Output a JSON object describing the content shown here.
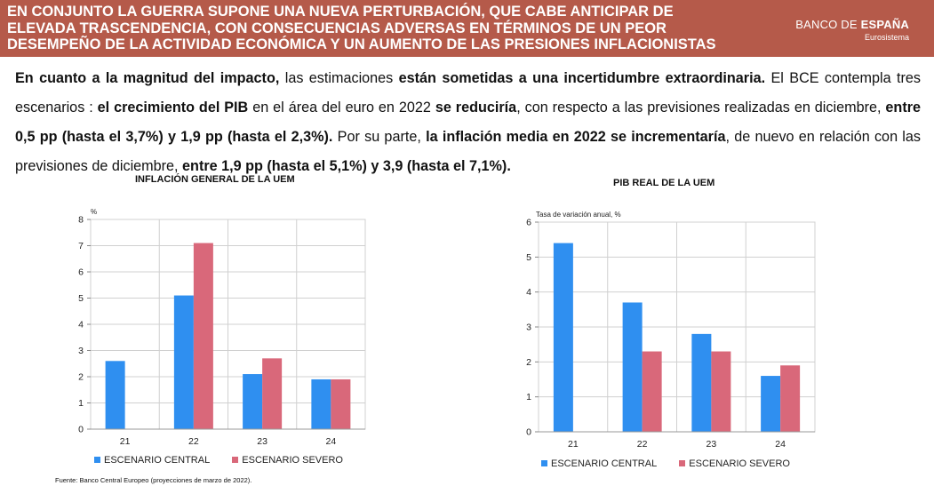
{
  "header": {
    "title_lines": [
      "EN CONJUNTO LA GUERRA SUPONE UNA NUEVA PERTURBACIÓN, QUE CABE ANTICIPAR DE",
      "ELEVADA TRASCENDENCIA, CON CONSECUENCIAS ADVERSAS EN TÉRMINOS DE UN PEOR",
      "DESEMPEÑO DE LA ACTIVIDAD ECONÓMICA Y UN AUMENTO DE LAS PRESIONES INFLACIONISTAS"
    ],
    "logo_part1": "BANCO DE ",
    "logo_part2": "ESPAÑA",
    "logo_sub": "Eurosistema",
    "bg_color": "#b55a4a"
  },
  "intro": [
    {
      "t": "En cuanto a la magnitud del impacto,",
      "b": true
    },
    {
      "t": " las estimaciones ",
      "b": false
    },
    {
      "t": "están sometidas a una incertidumbre extraordinaria.",
      "b": true
    },
    {
      "t": " El BCE contempla tres escenarios : ",
      "b": false
    },
    {
      "t": "el crecimiento del PIB",
      "b": true
    },
    {
      "t": " en el área del euro en 2022 ",
      "b": false
    },
    {
      "t": "se reduciría",
      "b": true
    },
    {
      "t": ", con respecto a las previsiones realizadas en diciembre, ",
      "b": false
    },
    {
      "t": "entre 0,5 pp (hasta el 3,7%) y 1,9 pp (hasta el 2,3%).",
      "b": true
    },
    {
      "t": " Por su parte, ",
      "b": false
    },
    {
      "t": "la inflación media en 2022 se incrementaría",
      "b": true
    },
    {
      "t": ", de nuevo en relación con las previsiones de diciembre, ",
      "b": false
    },
    {
      "t": "entre 1,9 pp (hasta el 5,1%) y 3,9 (hasta el 7,1%).",
      "b": true
    }
  ],
  "source": "Fuente: Banco Central Europeo (proyecciones de marzo de 2022).",
  "chart_data": [
    {
      "type": "bar",
      "title": "INFLACIÓN GENERAL DE LA UEM",
      "unit_label": "%",
      "categories": [
        "21",
        "22",
        "23",
        "24"
      ],
      "yticks": [
        "0",
        "1",
        "2",
        "3",
        "4",
        "5",
        "6",
        "7",
        "8"
      ],
      "ylim": [
        0,
        8
      ],
      "series": [
        {
          "name": "ESCENARIO CENTRAL",
          "color": "#2f8ff0",
          "values": [
            2.6,
            5.1,
            2.1,
            1.9
          ]
        },
        {
          "name": "ESCENARIO SEVERO",
          "color": "#d9687a",
          "values": [
            null,
            7.1,
            2.7,
            1.9
          ]
        }
      ],
      "grid": true,
      "legend": "bottom"
    },
    {
      "type": "bar",
      "title": "PIB REAL DE LA UEM",
      "unit_label": "Tasa de variación anual, %",
      "categories": [
        "21",
        "22",
        "23",
        "24"
      ],
      "yticks": [
        "0",
        "1",
        "2",
        "3",
        "4",
        "5",
        "6"
      ],
      "ylim": [
        0,
        6
      ],
      "series": [
        {
          "name": "ESCENARIO CENTRAL",
          "color": "#2f8ff0",
          "values": [
            5.4,
            3.7,
            2.8,
            1.6
          ]
        },
        {
          "name": "ESCENARIO SEVERO",
          "color": "#d9687a",
          "values": [
            null,
            2.3,
            2.3,
            1.9
          ]
        }
      ],
      "grid": true,
      "legend": "bottom"
    }
  ]
}
